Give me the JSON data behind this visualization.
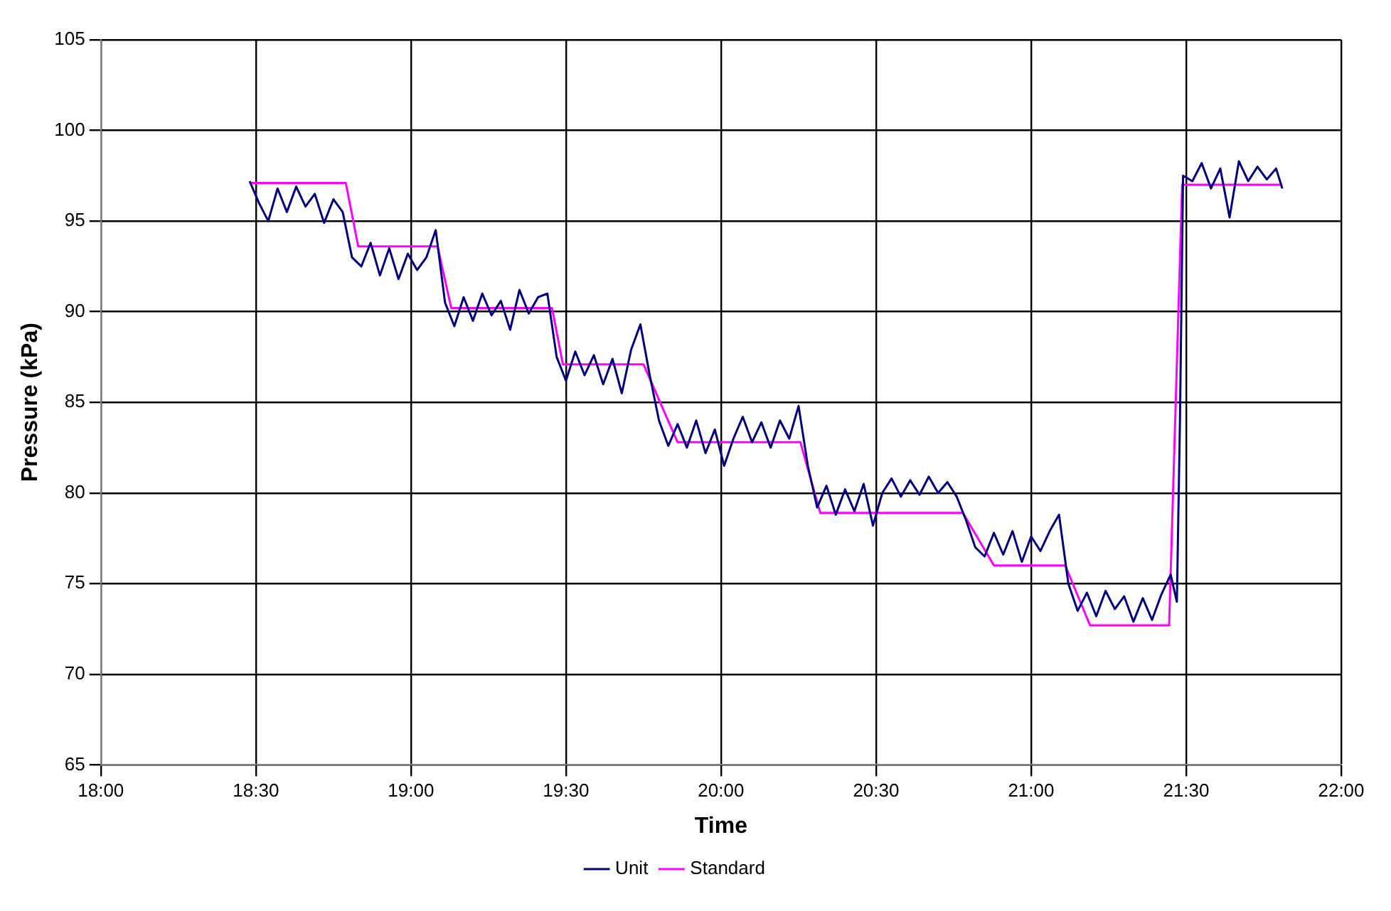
{
  "chart_data": {
    "type": "line",
    "xlabel": "Time",
    "ylabel": "Pressure (kPa)",
    "xlim": [
      18,
      22
    ],
    "xticks": [
      {
        "value": 18,
        "label": "18:00"
      },
      {
        "value": 18.5,
        "label": "18:30"
      },
      {
        "value": 19,
        "label": "19:00"
      },
      {
        "value": 19.5,
        "label": "19:30"
      },
      {
        "value": 20,
        "label": "20:00"
      },
      {
        "value": 20.5,
        "label": "20:30"
      },
      {
        "value": 21,
        "label": "21:00"
      },
      {
        "value": 21.5,
        "label": "21:30"
      },
      {
        "value": 22,
        "label": "22:00"
      }
    ],
    "ylim": [
      65,
      105
    ],
    "yticks": [
      65,
      70,
      75,
      80,
      85,
      90,
      95,
      100,
      105
    ],
    "grid": true,
    "legend": "bottom",
    "marker": "none",
    "line_style": "solid",
    "series": [
      {
        "name": "Unit",
        "color": "#000080",
        "x": [
          18.48,
          18.51,
          18.54,
          18.57,
          18.6,
          18.63,
          18.66,
          18.69,
          18.72,
          18.75,
          18.78,
          18.81,
          18.84,
          18.87,
          18.9,
          18.93,
          18.96,
          18.99,
          19.02,
          19.05,
          19.08,
          19.11,
          19.14,
          19.17,
          19.2,
          19.23,
          19.26,
          19.29,
          19.32,
          19.35,
          19.38,
          19.41,
          19.44,
          19.47,
          19.5,
          19.53,
          19.56,
          19.59,
          19.62,
          19.65,
          19.68,
          19.71,
          19.74,
          19.77,
          19.8,
          19.83,
          19.86,
          19.89,
          19.92,
          19.95,
          19.98,
          20.01,
          20.04,
          20.07,
          20.1,
          20.13,
          20.16,
          20.19,
          20.22,
          20.25,
          20.28,
          20.31,
          20.34,
          20.37,
          20.4,
          20.43,
          20.46,
          20.49,
          20.52,
          20.55,
          20.58,
          20.61,
          20.64,
          20.67,
          20.7,
          20.73,
          20.76,
          20.79,
          20.82,
          20.85,
          20.88,
          20.91,
          20.94,
          20.97,
          21.0,
          21.03,
          21.06,
          21.09,
          21.12,
          21.15,
          21.18,
          21.21,
          21.24,
          21.27,
          21.3,
          21.33,
          21.36,
          21.39,
          21.42,
          21.45,
          21.47,
          21.48,
          21.49,
          21.52,
          21.55,
          21.58,
          21.61,
          21.64,
          21.67,
          21.7,
          21.73,
          21.76,
          21.79,
          21.81
        ],
        "values": [
          97.2,
          96.0,
          95.0,
          96.8,
          95.5,
          96.9,
          95.8,
          96.5,
          94.9,
          96.2,
          95.5,
          93.0,
          92.5,
          93.8,
          92.0,
          93.5,
          91.8,
          93.2,
          92.3,
          93.0,
          94.5,
          90.5,
          89.2,
          90.8,
          89.5,
          91.0,
          89.8,
          90.6,
          89.0,
          91.2,
          89.9,
          90.8,
          91.0,
          87.5,
          86.2,
          87.8,
          86.5,
          87.6,
          86.0,
          87.4,
          85.5,
          87.9,
          89.3,
          86.5,
          84.0,
          82.6,
          83.8,
          82.5,
          84.0,
          82.2,
          83.5,
          81.5,
          83.0,
          84.2,
          82.8,
          83.9,
          82.5,
          84.0,
          83.0,
          84.8,
          81.5,
          79.2,
          80.4,
          78.8,
          80.2,
          79.0,
          80.5,
          78.2,
          80.0,
          80.8,
          79.8,
          80.7,
          79.9,
          80.9,
          80.0,
          80.6,
          79.8,
          78.5,
          77.0,
          76.5,
          77.8,
          76.6,
          77.9,
          76.2,
          77.6,
          76.8,
          77.9,
          78.8,
          75.0,
          73.5,
          74.5,
          73.2,
          74.6,
          73.6,
          74.3,
          72.9,
          74.2,
          73.0,
          74.4,
          75.5,
          74.0,
          84.0,
          97.5,
          97.2,
          98.2,
          96.8,
          97.9,
          95.2,
          98.3,
          97.2,
          98.0,
          97.3,
          97.9,
          96.8
        ]
      },
      {
        "name": "Standard",
        "color": "#ff00ff",
        "x": [
          18.48,
          18.79,
          18.83,
          19.086,
          19.13,
          19.455,
          19.49,
          19.75,
          19.86,
          20.256,
          20.32,
          20.78,
          20.88,
          21.11,
          21.19,
          21.445,
          21.487,
          21.81
        ],
        "values": [
          97.1,
          97.1,
          93.6,
          93.6,
          90.2,
          90.2,
          87.1,
          87.1,
          82.8,
          82.8,
          78.9,
          78.9,
          76.0,
          76.0,
          72.7,
          72.7,
          97.0,
          97.0
        ]
      }
    ]
  }
}
